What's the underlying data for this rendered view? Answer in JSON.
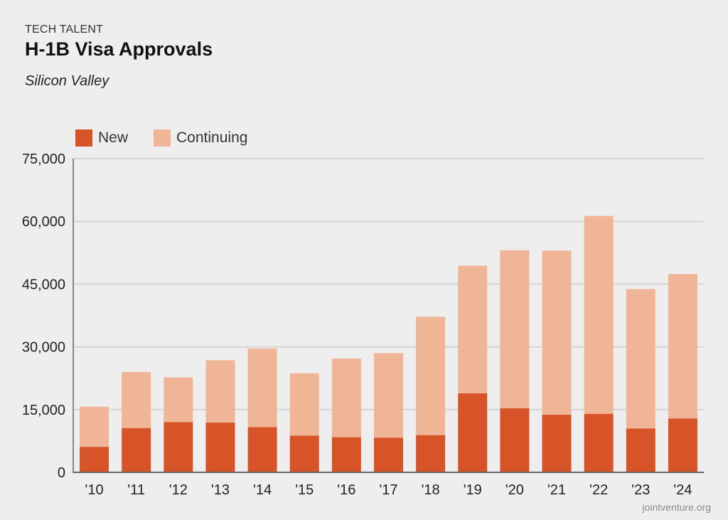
{
  "header": {
    "kicker": "TECH TALENT",
    "title": "H-1B Visa Approvals",
    "subtitle": "Silicon Valley"
  },
  "source": "jointventure.org",
  "colors": {
    "new": "#d75428",
    "continuing": "#efb596",
    "grid": "#d4d4d4",
    "axis": "#666666"
  },
  "chart_data": {
    "type": "bar",
    "stacked": true,
    "title": "H-1B Visa Approvals",
    "xlabel": "",
    "ylabel": "",
    "ylim": [
      0,
      75000
    ],
    "yticks": [
      0,
      15000,
      30000,
      45000,
      60000,
      75000
    ],
    "ytick_labels": [
      "0",
      "15,000",
      "30,000",
      "45,000",
      "60,000",
      "75,000"
    ],
    "legend_position": "top-left",
    "grid": true,
    "categories": [
      "'10",
      "'11",
      "'12",
      "'13",
      "'14",
      "'15",
      "'16",
      "'17",
      "'18",
      "'19",
      "'20",
      "'21",
      "'22",
      "'23",
      "'24"
    ],
    "series": [
      {
        "name": "New",
        "color": "#d75428",
        "values": [
          6100,
          10600,
          12000,
          11900,
          10800,
          8800,
          8400,
          8300,
          8900,
          18900,
          15300,
          13800,
          14000,
          10500,
          12900
        ]
      },
      {
        "name": "Continuing",
        "color": "#efb596",
        "values": [
          9600,
          13400,
          10700,
          14900,
          18800,
          14900,
          18800,
          20200,
          28300,
          30500,
          37800,
          39200,
          47300,
          33300,
          34500
        ]
      }
    ]
  }
}
